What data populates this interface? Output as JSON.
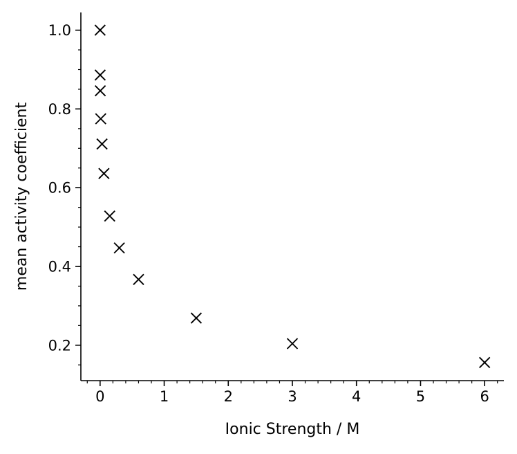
{
  "chart_data": {
    "type": "scatter",
    "title": "",
    "xlabel": "Ionic Strength / M",
    "ylabel": "mean activity coefficient",
    "xlim": [
      -0.3,
      6.3
    ],
    "ylim": [
      0.11,
      1.045
    ],
    "grid": false,
    "marker": "x",
    "marker_color": "#000000",
    "axis_color": "#000000",
    "x_ticks": [
      0,
      1,
      2,
      3,
      4,
      5,
      6
    ],
    "x_tick_labels": [
      "0",
      "1",
      "2",
      "3",
      "4",
      "5",
      "6"
    ],
    "x_minor_step": 0.2,
    "y_ticks": [
      0.2,
      0.4,
      0.6,
      0.8,
      1.0
    ],
    "y_tick_labels": [
      "0.2",
      "0.4",
      "0.6",
      "0.8",
      "1.0"
    ],
    "y_minor_step": 0.05,
    "series": [
      {
        "points": [
          {
            "x": 0.0,
            "y": 1.0
          },
          {
            "x": 0.001,
            "y": 0.886
          },
          {
            "x": 0.003,
            "y": 0.846
          },
          {
            "x": 0.01,
            "y": 0.775
          },
          {
            "x": 0.03,
            "y": 0.711
          },
          {
            "x": 0.06,
            "y": 0.636
          },
          {
            "x": 0.15,
            "y": 0.528
          },
          {
            "x": 0.3,
            "y": 0.447
          },
          {
            "x": 0.6,
            "y": 0.367
          },
          {
            "x": 1.5,
            "y": 0.269
          },
          {
            "x": 3.0,
            "y": 0.204
          },
          {
            "x": 6.0,
            "y": 0.156
          }
        ]
      }
    ]
  }
}
